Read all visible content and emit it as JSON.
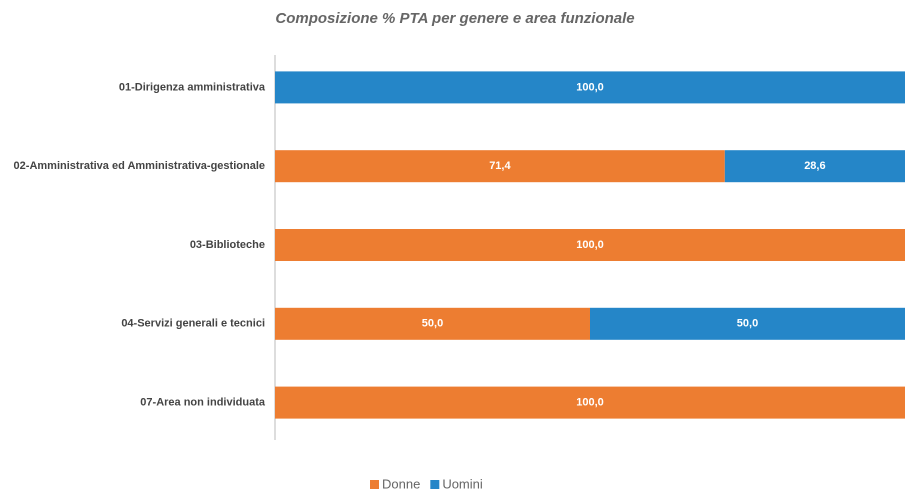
{
  "chart_data": {
    "type": "stacked_barh",
    "title": "Composizione % PTA per genere e area funzionale",
    "categories": [
      "01-Dirigenza amministrativa",
      "02-Amministrativa ed Amministrativa-gestionale",
      "03-Biblioteche",
      "04-Servizi generali e tecnici",
      "07-Area non individuata"
    ],
    "series": [
      {
        "name": "Donne",
        "color": "#ed7d31",
        "values": [
          0,
          71.4,
          100,
          50,
          100
        ],
        "value_labels": [
          null,
          "71,4",
          "100,0",
          "50,0",
          "100,0"
        ]
      },
      {
        "name": "Uomini",
        "color": "#2586c8",
        "values": [
          100,
          28.6,
          0,
          50,
          0
        ],
        "value_labels": [
          "100,0",
          "28,6",
          null,
          "50,0",
          null
        ]
      }
    ],
    "xlim": [
      0,
      100
    ],
    "legend": "bottom"
  }
}
